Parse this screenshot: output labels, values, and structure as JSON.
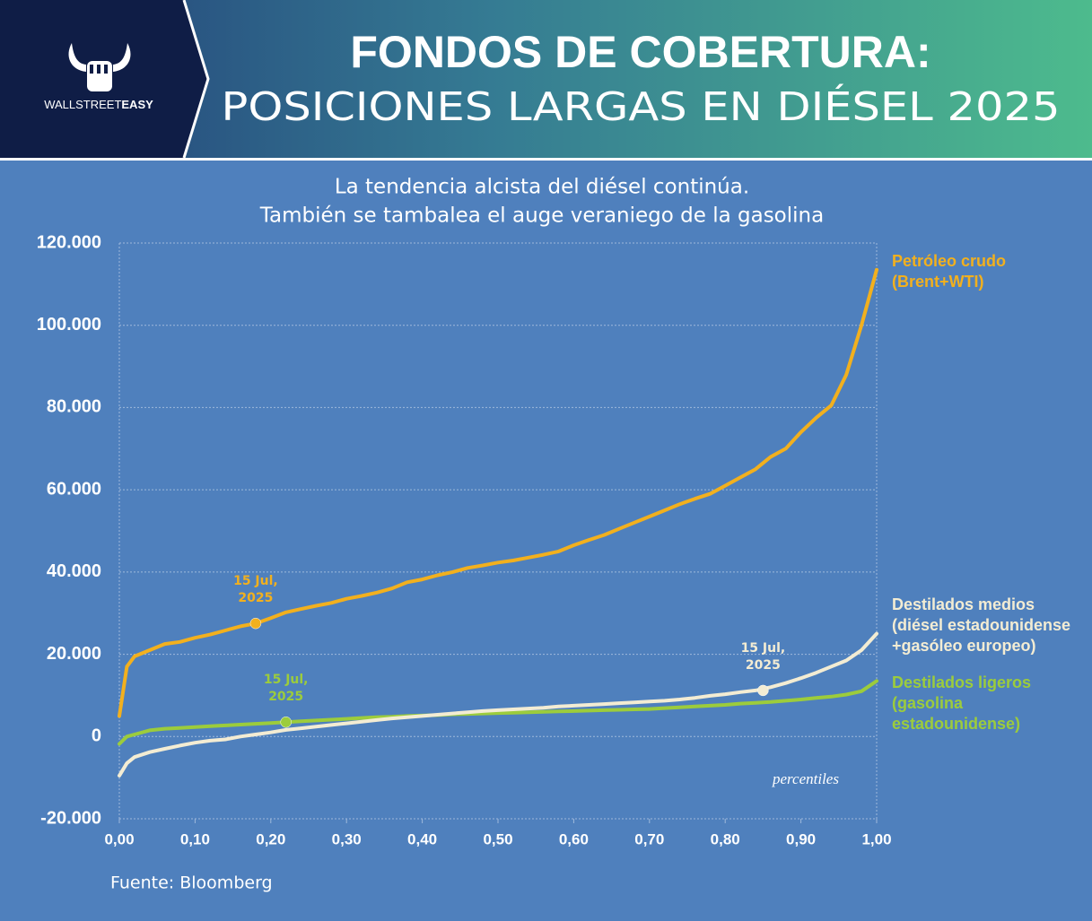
{
  "header": {
    "brand_light": "WALLSTREET",
    "brand_bold": "EASY",
    "title_line1": "FONDOS DE COBERTURA:",
    "title_line2": "POSICIONES LARGAS EN DIÉSEL 2025"
  },
  "chart_data": {
    "type": "line",
    "subtitle": [
      "La tendencia alcista del diésel continúa.",
      "También se tambalea el auge veraniego de la gasolina"
    ],
    "xlabel": "percentiles",
    "source": "Fuente: Bloomberg",
    "x": [
      0,
      0.01,
      0.02,
      0.04,
      0.06,
      0.08,
      0.1,
      0.12,
      0.14,
      0.16,
      0.18,
      0.2,
      0.22,
      0.24,
      0.26,
      0.28,
      0.3,
      0.32,
      0.34,
      0.36,
      0.38,
      0.4,
      0.42,
      0.44,
      0.46,
      0.48,
      0.5,
      0.52,
      0.54,
      0.56,
      0.58,
      0.6,
      0.62,
      0.64,
      0.66,
      0.68,
      0.7,
      0.72,
      0.74,
      0.76,
      0.78,
      0.8,
      0.82,
      0.84,
      0.86,
      0.88,
      0.9,
      0.92,
      0.94,
      0.96,
      0.98,
      1.0
    ],
    "series": [
      {
        "name": "Petróleo crudo (Brent+WTI)",
        "color": "#f2b01e",
        "values": [
          5000,
          17000,
          19500,
          21000,
          22500,
          23000,
          24000,
          24800,
          25800,
          26800,
          27500,
          28800,
          30200,
          31000,
          31800,
          32500,
          33500,
          34200,
          35000,
          36000,
          37500,
          38200,
          39200,
          40000,
          41000,
          41600,
          42300,
          42800,
          43500,
          44200,
          45000,
          46500,
          47800,
          49000,
          50500,
          52000,
          53500,
          55000,
          56500,
          57800,
          59000,
          61000,
          63000,
          65000,
          68000,
          70000,
          74000,
          77500,
          80500,
          88000,
          100000,
          113500
        ]
      },
      {
        "name": "Destilados medios (diésel estadounidense +gasóleo europeo)",
        "color": "#f3ecd3",
        "values": [
          -9500,
          -6500,
          -5000,
          -3800,
          -3000,
          -2200,
          -1500,
          -1000,
          -700,
          0,
          500,
          1000,
          1600,
          2000,
          2400,
          2800,
          3200,
          3600,
          4000,
          4400,
          4700,
          5000,
          5300,
          5600,
          5900,
          6200,
          6400,
          6600,
          6800,
          7000,
          7300,
          7500,
          7700,
          7900,
          8100,
          8300,
          8500,
          8700,
          9000,
          9400,
          9900,
          10300,
          10800,
          11200,
          12000,
          13000,
          14200,
          15500,
          17000,
          18500,
          21000,
          25000
        ]
      },
      {
        "name": "Destilados ligeros (gasolina estadounidense)",
        "color": "#9ccc3c",
        "values": [
          -1800,
          0,
          500,
          1500,
          1900,
          2100,
          2300,
          2500,
          2700,
          2900,
          3100,
          3300,
          3500,
          3700,
          3900,
          4100,
          4300,
          4500,
          4700,
          4800,
          5000,
          5100,
          5200,
          5400,
          5500,
          5600,
          5700,
          5800,
          5900,
          6000,
          6100,
          6200,
          6300,
          6400,
          6500,
          6600,
          6700,
          6900,
          7100,
          7300,
          7500,
          7700,
          8000,
          8200,
          8400,
          8700,
          9000,
          9400,
          9700,
          10200,
          11000,
          13500
        ]
      }
    ],
    "annotations": [
      {
        "text": "15 Jul, 2025",
        "x": 0.18,
        "y": 27500,
        "color": "#f2b01e"
      },
      {
        "text": "15 Jul, 2025",
        "x": 0.85,
        "y": 11200,
        "color": "#f3ecd3"
      },
      {
        "text": "15 Jul, 2025",
        "x": 0.22,
        "y": 3500,
        "color": "#9ccc3c"
      }
    ],
    "xlim": [
      0,
      1
    ],
    "xticks": [
      {
        "value": 0,
        "label": "0,00"
      },
      {
        "value": 0.1,
        "label": "0,10"
      },
      {
        "value": 0.2,
        "label": "0,20"
      },
      {
        "value": 0.3,
        "label": "0,30"
      },
      {
        "value": 0.4,
        "label": "0,40"
      },
      {
        "value": 0.5,
        "label": "0,50"
      },
      {
        "value": 0.6,
        "label": "0,60"
      },
      {
        "value": 0.7,
        "label": "0,70"
      },
      {
        "value": 0.8,
        "label": "0,80"
      },
      {
        "value": 0.9,
        "label": "0,90"
      },
      {
        "value": 1,
        "label": "1,00"
      }
    ],
    "ylim": [
      -20000,
      120000
    ],
    "yticks": [
      {
        "value": -20000,
        "label": "-20.000"
      },
      0,
      {
        "value": 20000,
        "label": "20.000"
      },
      {
        "value": 40000,
        "label": "40.000"
      },
      {
        "value": 60000,
        "label": "60.000"
      },
      {
        "value": 80000,
        "label": "80.000"
      },
      {
        "value": 100000,
        "label": "100.000"
      },
      {
        "value": 120000,
        "label": "120.000"
      }
    ],
    "grid": true
  }
}
